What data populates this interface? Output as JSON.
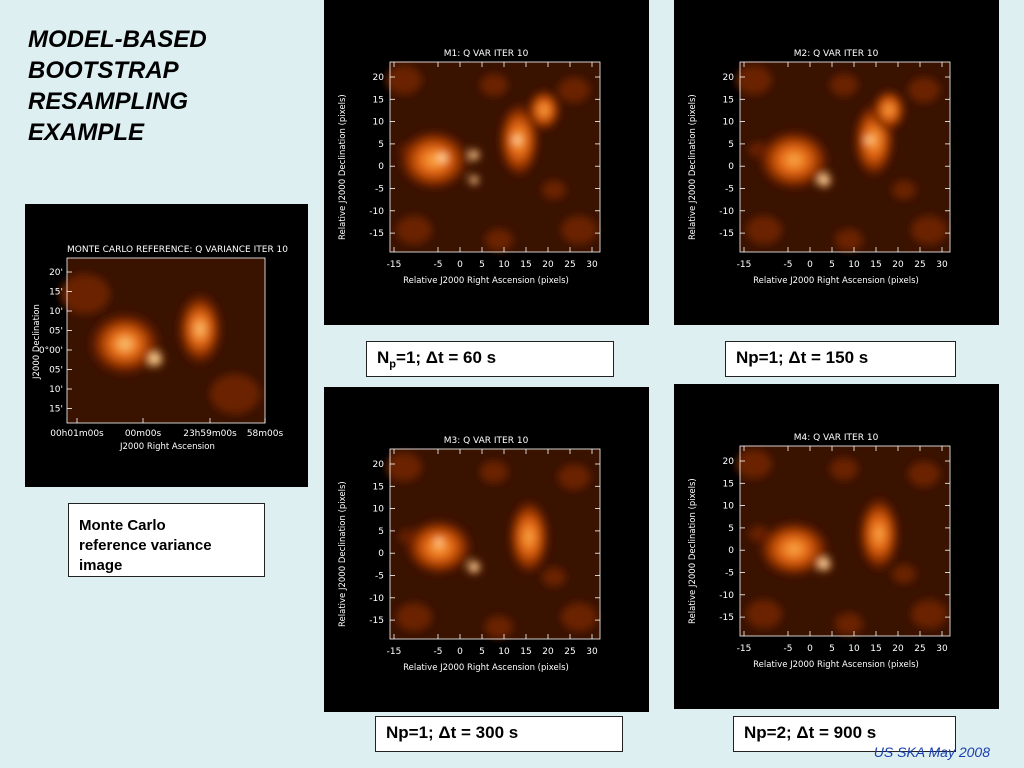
{
  "slide": {
    "title": "MODEL-BASED\nBOOTSTRAP\nRESAMPLING\nEXAMPLE",
    "footer": "US SKA May 2008",
    "mc_caption": "Monte Carlo\nreference variance\nimage"
  },
  "reference_image": {
    "title": "MONTE CARLO REFERENCE: Q VARIANCE ITER 10",
    "ylabel": "J2000 Declination",
    "xlabel": "J2000 Right Ascension",
    "yticks": [
      "20'",
      "15'",
      "10'",
      "05'",
      "-0°00'",
      "05'",
      "10'",
      "15'"
    ],
    "xticks": [
      "00h01m00s",
      "00m00s",
      "23h59m00s",
      "58m00s"
    ]
  },
  "panels": [
    {
      "title": "M1: Q VAR ITER 10",
      "caption_prefix": "N",
      "caption_sub": "p",
      "caption_rest": "=1; Δt = 60 s"
    },
    {
      "title": "M2: Q VAR ITER 10",
      "caption": "Np=1; Δt = 150 s"
    },
    {
      "title": "M3: Q VAR ITER 10",
      "caption": "Np=1; Δt = 300 s"
    },
    {
      "title": "M4: Q VAR ITER 10",
      "caption": "Np=2; Δt = 900 s"
    }
  ],
  "axes": {
    "ylabel": "Relative J2000 Declination (pixels)",
    "xlabel": "Relative J2000 Right Ascension (pixels)",
    "yticks": [
      "20",
      "15",
      "10",
      "5",
      "0",
      "-5",
      "-10",
      "-15"
    ],
    "xticks": [
      "-15",
      "-5",
      "0",
      "5",
      "10",
      "15",
      "20",
      "25",
      "30"
    ]
  },
  "colors": {
    "background": "#ddeff0",
    "footer": "#1a3fb0"
  }
}
